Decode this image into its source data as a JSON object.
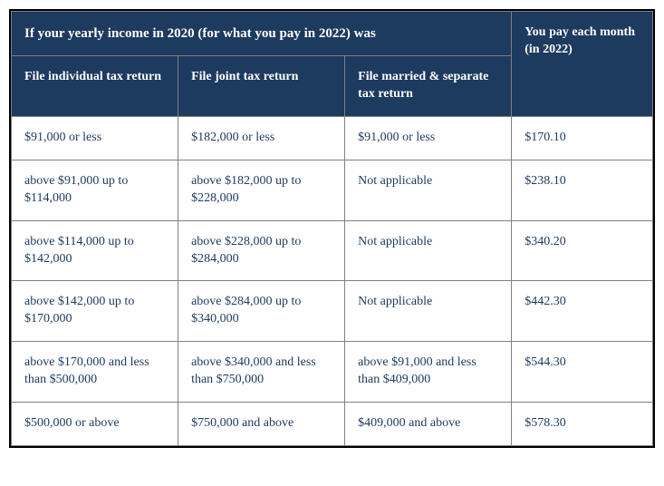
{
  "table": {
    "header_bg": "#1d3a5f",
    "header_fg": "#ffffff",
    "body_fg": "#1d3a5f",
    "border_color": "#808080",
    "outer_border_color": "#000000",
    "super_header": "If your yearly income in 2020 (for what you pay in 2022) was",
    "right_header": "You pay each month (in 2022)",
    "columns": [
      "File individual tax return",
      "File joint tax return",
      "File married & separate tax return"
    ],
    "rows": [
      {
        "c1": "$91,000 or less",
        "c2": "$182,000 or less",
        "c3": "$91,000 or less",
        "c4": "$170.10"
      },
      {
        "c1": "above $91,000 up to $114,000",
        "c2": "above $182,000 up to $228,000",
        "c3": "Not applicable",
        "c4": "$238.10"
      },
      {
        "c1": "above $114,000 up to $142,000",
        "c2": "above $228,000 up to $284,000",
        "c3": "Not applicable",
        "c4": "$340.20"
      },
      {
        "c1": "above $142,000 up to $170,000",
        "c2": "above $284,000 up to $340,000",
        "c3": "Not applicable",
        "c4": "$442.30"
      },
      {
        "c1": "above $170,000 and less than $500,000",
        "c2": "above $340,000 and less than $750,000",
        "c3": "above $91,000 and less than $409,000",
        "c4": "$544.30"
      },
      {
        "c1": "$500,000 or above",
        "c2": "$750,000 and above",
        "c3": "$409,000 and above",
        "c4": "$578.30"
      }
    ]
  }
}
